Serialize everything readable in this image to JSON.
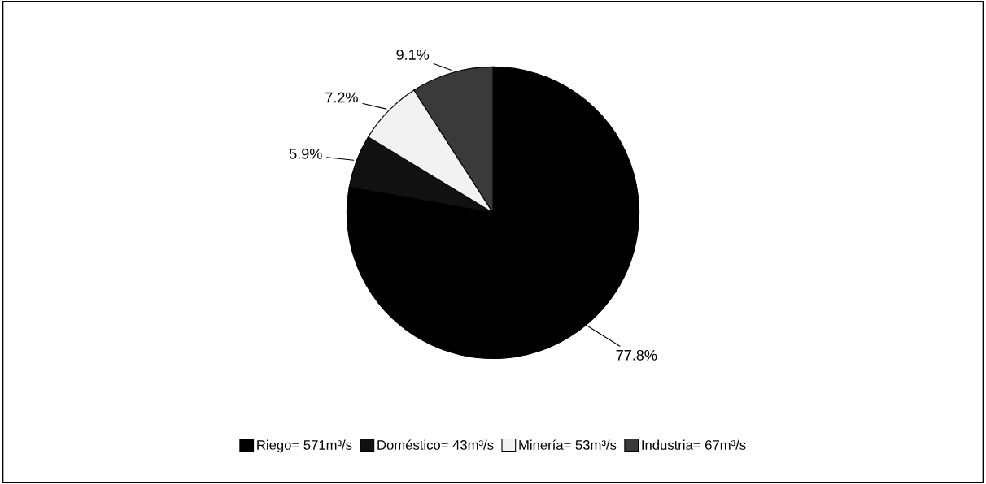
{
  "chart_data": {
    "type": "pie",
    "categories": [
      "Riego= 571m³/s",
      "Doméstico= 43m³/s",
      "Minería= 53m³/s",
      "Industria= 67m³/s"
    ],
    "values": [
      77.8,
      5.9,
      7.2,
      9.1
    ],
    "value_labels": [
      "77.8%",
      "5.9%",
      "7.2%",
      "9.1%"
    ],
    "colors": [
      "#000000",
      "#111111",
      "#f2f2f2",
      "#3a3a3a"
    ],
    "legend": "bottom"
  }
}
